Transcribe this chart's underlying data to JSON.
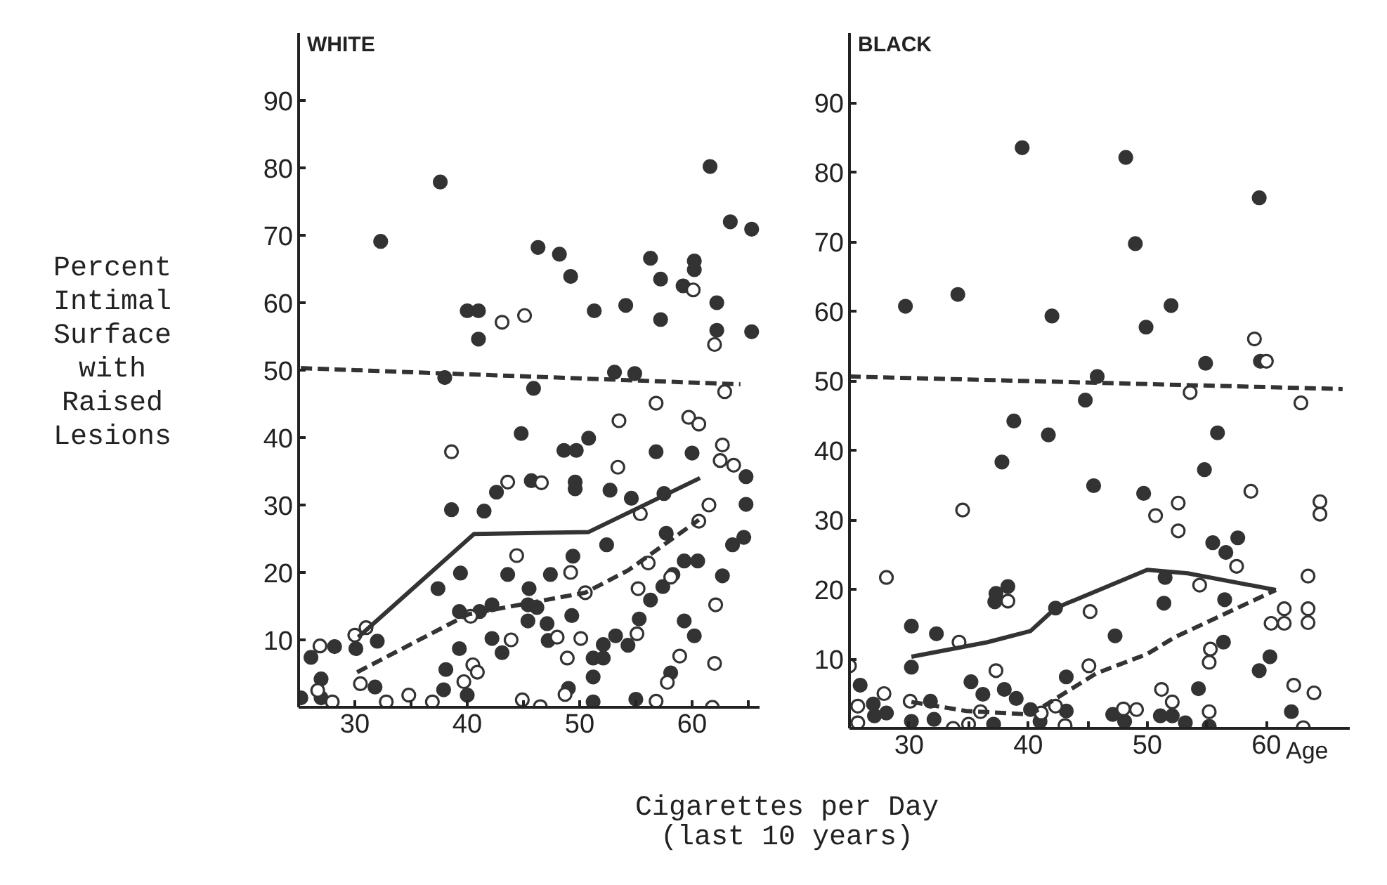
{
  "chart_data": [
    {
      "type": "scatter",
      "title": "WHITE",
      "ylabel": "Percent\nIntimal\nSurface\nwith\nRaised\nLesions",
      "xlabel": "Cigarettes per Day\n(last 10 years)",
      "xlim": [
        25,
        66
      ],
      "ylim": [
        0,
        100
      ],
      "xticks": [
        30,
        {
          "value": 35,
          "label": null
        },
        40,
        {
          "value": 45,
          "label": null
        },
        50,
        {
          "value": 55,
          "label": null
        },
        60,
        {
          "value": 65,
          "label": null
        }
      ],
      "yticks": [
        10,
        20,
        30,
        40,
        50,
        60,
        70,
        80,
        90
      ],
      "grid": false,
      "series": [
        {
          "marker": "circle",
          "color": "#333333",
          "x": [
            32.3,
            37.6,
            40,
            41.0,
            41.0,
            46.3,
            48.2,
            49.2,
            51.3,
            54.1,
            56.3,
            57.2,
            57.2,
            59.2,
            60.2,
            60.2,
            61.6,
            62.2,
            62.2,
            63.4,
            65.3,
            65.3,
            53.1,
            54.9,
            38.0,
            45.9,
            44.8,
            38.6,
            41.5,
            42.6,
            45.7,
            48.6,
            49.7,
            50.8,
            49.6,
            49.6,
            52.7,
            54.6,
            56.8,
            60.0,
            64.8,
            64.8,
            63.6,
            64.6,
            57.5,
            52.4,
            37.4,
            39.4,
            43.6,
            45.5,
            47.4,
            49.4,
            45.4,
            42.2,
            41.1,
            39.3,
            46.2,
            49.3,
            45.4,
            47.1,
            51.2,
            52.1,
            42.2,
            43.1,
            39.3,
            38.1,
            37.9,
            40.0,
            47.2,
            51.2,
            49.0,
            51.2,
            52.1,
            53.2,
            54.3,
            55.3,
            56.3,
            57.4,
            58.3,
            59.3,
            60.5,
            62.7,
            59.3,
            60.2,
            58.1,
            55.0,
            57.7,
            26.1,
            28.2,
            30.1,
            32.0,
            27.0,
            27.0,
            31.8,
            25.2
          ],
          "values": [
            69.1,
            77.9,
            58.8,
            58.8,
            54.6,
            68.2,
            67.2,
            63.9,
            58.8,
            59.6,
            66.6,
            63.5,
            57.5,
            62.5,
            66.2,
            64.9,
            80.2,
            60.0,
            55.9,
            72.0,
            70.9,
            55.7,
            49.7,
            49.5,
            48.9,
            47.3,
            40.6,
            29.3,
            29.1,
            31.9,
            33.6,
            38.1,
            38.1,
            39.9,
            33.4,
            32.4,
            32.2,
            31.0,
            37.9,
            37.7,
            34.2,
            30.1,
            24.1,
            25.2,
            31.7,
            24.1,
            17.6,
            19.9,
            19.7,
            17.6,
            19.7,
            22.4,
            15.2,
            15.2,
            14.2,
            14.2,
            14.8,
            13.6,
            12.8,
            12.4,
            7.3,
            7.3,
            10.2,
            8.1,
            8.7,
            5.6,
            2.6,
            1.8,
            9.9,
            4.5,
            2.8,
            0.8,
            9.3,
            10.6,
            9.2,
            13.1,
            15.9,
            17.9,
            19.7,
            21.7,
            21.7,
            19.5,
            12.8,
            10.6,
            5.1,
            1.2,
            25.8,
            7.4,
            9.0,
            8.7,
            9.8,
            4.2,
            1.4,
            3.0,
            1.4
          ]
        },
        {
          "marker": "circle_open",
          "color": "#333333",
          "x": [
            43.1,
            45.1,
            60.1,
            62.0,
            38.6,
            43.6,
            46.6,
            53.5,
            56.8,
            53.4,
            59.7,
            60.6,
            62.7,
            62.5,
            63.7,
            62.9,
            61.5,
            60.6,
            55.4,
            55.2,
            56.1,
            58.1,
            50.5,
            49.2,
            44.4,
            40.3,
            30.0,
            31.0,
            26.9,
            43.9,
            48.0,
            48.9,
            50.1,
            55.1,
            58.9,
            57.8,
            62.0,
            62.1,
            61.8,
            56.8,
            48.7,
            44.9,
            46.5,
            40.5,
            40.9,
            39.7,
            26.7,
            32.8,
            34.8,
            36.9,
            28.0,
            30.5
          ],
          "values": [
            57.1,
            58.1,
            61.9,
            53.8,
            37.9,
            33.4,
            33.3,
            42.5,
            45.1,
            35.6,
            43.0,
            42.0,
            38.9,
            36.6,
            35.9,
            46.8,
            30.0,
            27.6,
            28.7,
            17.6,
            21.4,
            19.3,
            17.0,
            20.0,
            22.5,
            13.5,
            10.7,
            11.8,
            9.1,
            10.0,
            10.4,
            7.3,
            10.2,
            10.9,
            7.6,
            3.7,
            6.5,
            15.2,
            0.0,
            0.9,
            1.9,
            1.1,
            0.1,
            6.3,
            5.2,
            3.8,
            2.5,
            0.8,
            1.8,
            0.8,
            0.8,
            3.5
          ]
        },
        {
          "type": "line",
          "marker": "none",
          "line_style": "solid",
          "color": "#333333",
          "x": [
            30.3,
            40.6,
            50.8,
            60.7
          ],
          "values": [
            10.4,
            25.7,
            26.0,
            34.0
          ]
        },
        {
          "type": "line",
          "marker": "none",
          "line_style": "dashed",
          "color": "#333333",
          "x": [
            30.2,
            40.1,
            50.5,
            54.3,
            60.6
          ],
          "values": [
            5.2,
            13.8,
            17.0,
            20.3,
            27.8
          ]
        },
        {
          "type": "line",
          "marker": "none",
          "line_style": "dashed",
          "color": "#333333",
          "x": [
            25.2,
            64.3
          ],
          "values": [
            50.3,
            47.9
          ]
        }
      ]
    },
    {
      "type": "scatter",
      "title": "BLACK",
      "xlabel": "Age",
      "xlim": [
        25,
        67
      ],
      "ylim": [
        0,
        100
      ],
      "xticks": [
        30,
        {
          "value": 35,
          "label": null
        },
        40,
        {
          "value": 45,
          "label": null
        },
        50,
        {
          "value": 55,
          "label": null
        },
        60
      ],
      "yticks": [
        10,
        20,
        30,
        40,
        50,
        60,
        70,
        80,
        90
      ],
      "grid": false,
      "series": [
        {
          "marker": "circle",
          "color": "#333333",
          "x": [
            29.7,
            34.1,
            39.5,
            42.0,
            48.2,
            49.0,
            49.9,
            52.0,
            59.4,
            54.9,
            59.5,
            44.8,
            45.8,
            38.8,
            37.8,
            41.7,
            45.5,
            49.7,
            55.9,
            54.8,
            55.5,
            56.6,
            57.6,
            56.5,
            56.4,
            51.4,
            51.5,
            47.3,
            30.2,
            32.3,
            30.2,
            37.2,
            37.3,
            38.3,
            42.3,
            43.2,
            35.2,
            36.2,
            38.0,
            39.0,
            40.2,
            25.9,
            27.0,
            28.1,
            47.1,
            48.1,
            51.1,
            52.1,
            53.2,
            54.3,
            55.2,
            59.4,
            60.3,
            62.1,
            31.8,
            27.1,
            41.0,
            43.2,
            37.1,
            32.1,
            30.2
          ],
          "values": [
            60.7,
            62.4,
            83.5,
            59.3,
            82.1,
            69.7,
            57.7,
            60.8,
            76.3,
            52.5,
            52.8,
            47.2,
            50.6,
            44.2,
            38.3,
            42.2,
            34.9,
            33.8,
            42.5,
            37.2,
            26.7,
            25.3,
            27.4,
            18.5,
            12.4,
            18.0,
            21.7,
            13.3,
            14.7,
            13.6,
            8.8,
            18.2,
            19.4,
            20.4,
            17.3,
            7.4,
            6.7,
            4.9,
            5.6,
            4.3,
            2.7,
            6.2,
            3.5,
            2.2,
            2.0,
            1.0,
            1.8,
            1.8,
            0.8,
            5.7,
            0.3,
            8.3,
            10.3,
            2.4,
            3.9,
            1.8,
            1.0,
            2.5,
            0.6,
            1.3,
            1.0
          ]
        },
        {
          "marker": "circle_open",
          "color": "#333333",
          "x": [
            59.0,
            60.0,
            25.0,
            28.1,
            27.9,
            25.7,
            34.5,
            34.2,
            37.3,
            38.3,
            45.2,
            45.1,
            50.7,
            52.6,
            52.6,
            57.5,
            58.7,
            54.4,
            53.6,
            55.3,
            55.2,
            55.2,
            62.9,
            64.5,
            64.5,
            63.5,
            63.5,
            63.5,
            61.5,
            60.4,
            61.5,
            64.0,
            62.3,
            63.1,
            51.2,
            52.1,
            49.1,
            48.0,
            43.1,
            41.1,
            42.3,
            30.1,
            36.0,
            35.0,
            33.7,
            25.7
          ],
          "values": [
            56.0,
            52.8,
            9.0,
            21.7,
            5.0,
            3.2,
            31.4,
            12.4,
            8.3,
            18.3,
            16.8,
            9.0,
            30.6,
            32.4,
            28.4,
            23.3,
            34.1,
            20.6,
            48.3,
            11.4,
            9.5,
            2.4,
            46.8,
            32.6,
            30.8,
            21.9,
            17.2,
            15.2,
            17.2,
            15.1,
            15.1,
            5.1,
            6.2,
            0.1,
            5.6,
            3.8,
            2.7,
            2.8,
            0.4,
            2.2,
            3.2,
            3.9,
            2.4,
            0.6,
            0.0,
            0.8
          ]
        },
        {
          "type": "line",
          "marker": "none",
          "line_style": "solid",
          "color": "#333333",
          "x": [
            30.2,
            36.6,
            40.2,
            42.3,
            50.0,
            53.4,
            60.8
          ],
          "values": [
            10.3,
            12.4,
            14.0,
            17.3,
            22.8,
            22.3,
            19.9
          ]
        },
        {
          "type": "line",
          "marker": "none",
          "line_style": "dashed",
          "color": "#333333",
          "x": [
            30.2,
            34.8,
            40.2,
            45.7,
            50.0,
            52.3,
            60.8
          ],
          "values": [
            3.8,
            2.5,
            2.0,
            7.9,
            10.7,
            13.1,
            19.9
          ]
        },
        {
          "type": "line",
          "marker": "none",
          "line_style": "dashed",
          "color": "#333333",
          "x": [
            25.0,
            66.4
          ],
          "values": [
            50.6,
            48.8
          ]
        }
      ]
    }
  ]
}
